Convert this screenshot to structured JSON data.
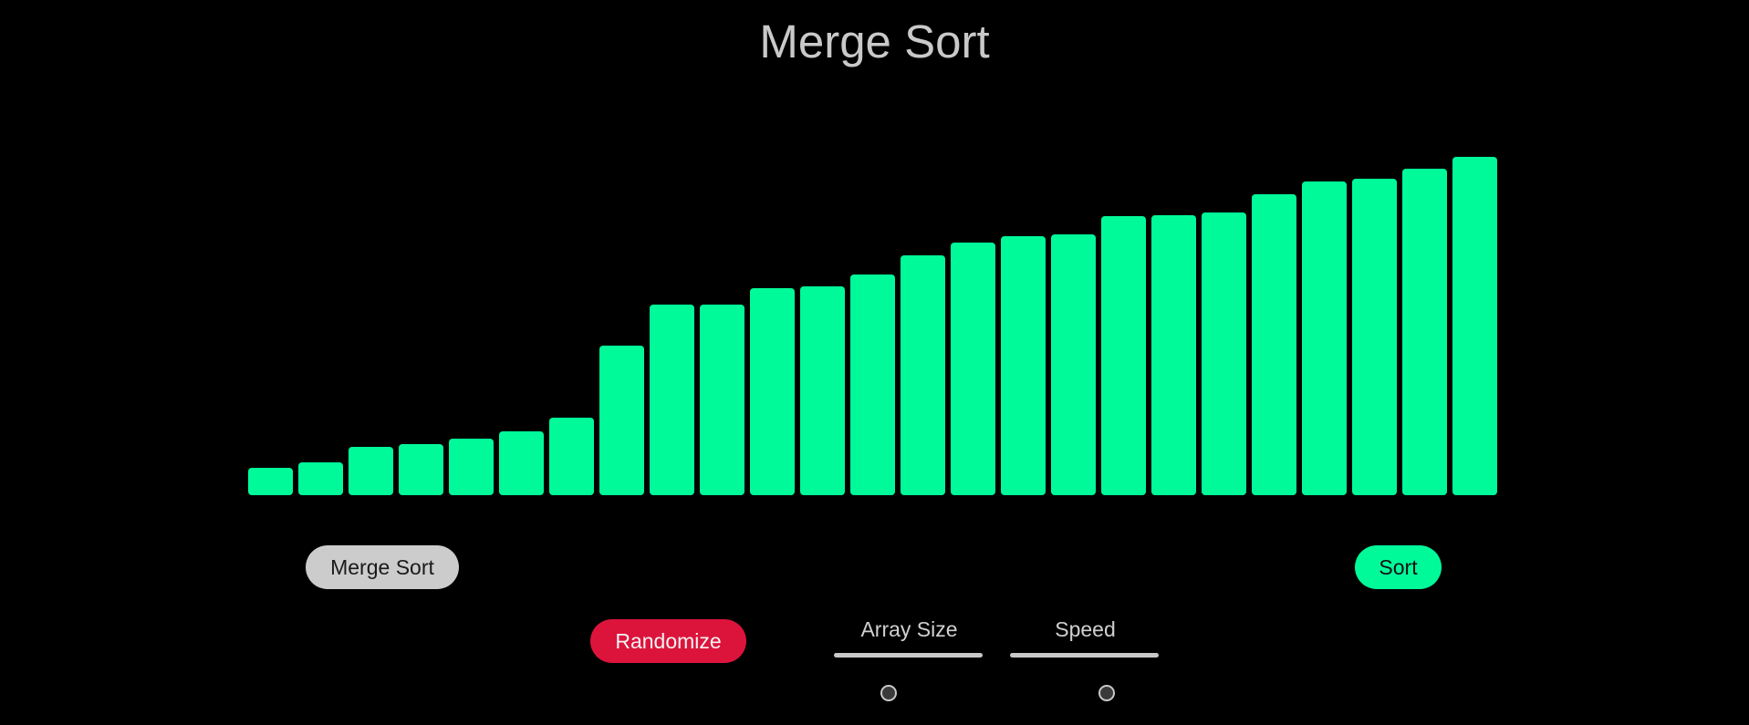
{
  "header": {
    "title": "Merge Sort"
  },
  "colors": {
    "bar": "#00fa9a",
    "randomize": "#dc143c",
    "select_bg": "#cccccc"
  },
  "controls": {
    "algorithm_selected": "Merge Sort",
    "sort_label": "Sort",
    "randomize_label": "Randomize",
    "array_size_label": "Array Size",
    "array_size_value": 0.37,
    "speed_label": "Speed",
    "speed_value": 0.65
  },
  "chart_data": {
    "type": "bar",
    "values": [
      30,
      36,
      53,
      56,
      62,
      70,
      85,
      164,
      209,
      209,
      227,
      229,
      242,
      263,
      277,
      284,
      286,
      306,
      307,
      310,
      330,
      344,
      347,
      358,
      371
    ],
    "ylim": [
      0,
      371
    ],
    "xlabel": "",
    "ylabel": "",
    "title": "",
    "grid": false
  }
}
